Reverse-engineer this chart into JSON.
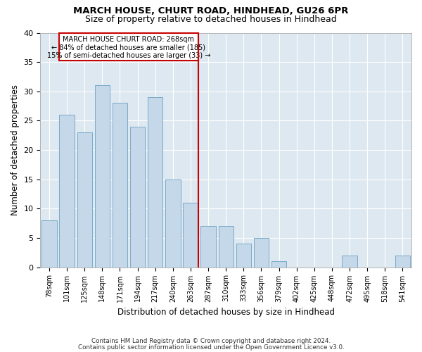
{
  "title1": "MARCH HOUSE, CHURT ROAD, HINDHEAD, GU26 6PR",
  "title2": "Size of property relative to detached houses in Hindhead",
  "xlabel": "Distribution of detached houses by size in Hindhead",
  "ylabel": "Number of detached properties",
  "categories": [
    "78sqm",
    "101sqm",
    "125sqm",
    "148sqm",
    "171sqm",
    "194sqm",
    "217sqm",
    "240sqm",
    "263sqm",
    "287sqm",
    "310sqm",
    "333sqm",
    "356sqm",
    "379sqm",
    "402sqm",
    "425sqm",
    "448sqm",
    "472sqm",
    "495sqm",
    "518sqm",
    "541sqm"
  ],
  "values": [
    8,
    26,
    23,
    31,
    28,
    24,
    29,
    15,
    11,
    7,
    7,
    4,
    5,
    1,
    0,
    0,
    0,
    2,
    0,
    0,
    2
  ],
  "bar_color": "#c5d8ea",
  "bar_edge_color": "#7aaac8",
  "marker_bin_index": 8,
  "annotation_line1": "MARCH HOUSE CHURT ROAD: 268sqm",
  "annotation_line2": "← 84% of detached houses are smaller (185)",
  "annotation_line3": "15% of semi-detached houses are larger (33) →",
  "vline_color": "#cc0000",
  "annotation_box_edgecolor": "#cc0000",
  "annotation_box_facecolor": "#ffffff",
  "ylim": [
    0,
    40
  ],
  "yticks": [
    0,
    5,
    10,
    15,
    20,
    25,
    30,
    35,
    40
  ],
  "footnote1": "Contains HM Land Registry data © Crown copyright and database right 2024.",
  "footnote2": "Contains public sector information licensed under the Open Government Licence v3.0.",
  "bg_color": "#dde8f0",
  "plot_bg_color": "#dde8f0",
  "grid_color": "#ffffff"
}
